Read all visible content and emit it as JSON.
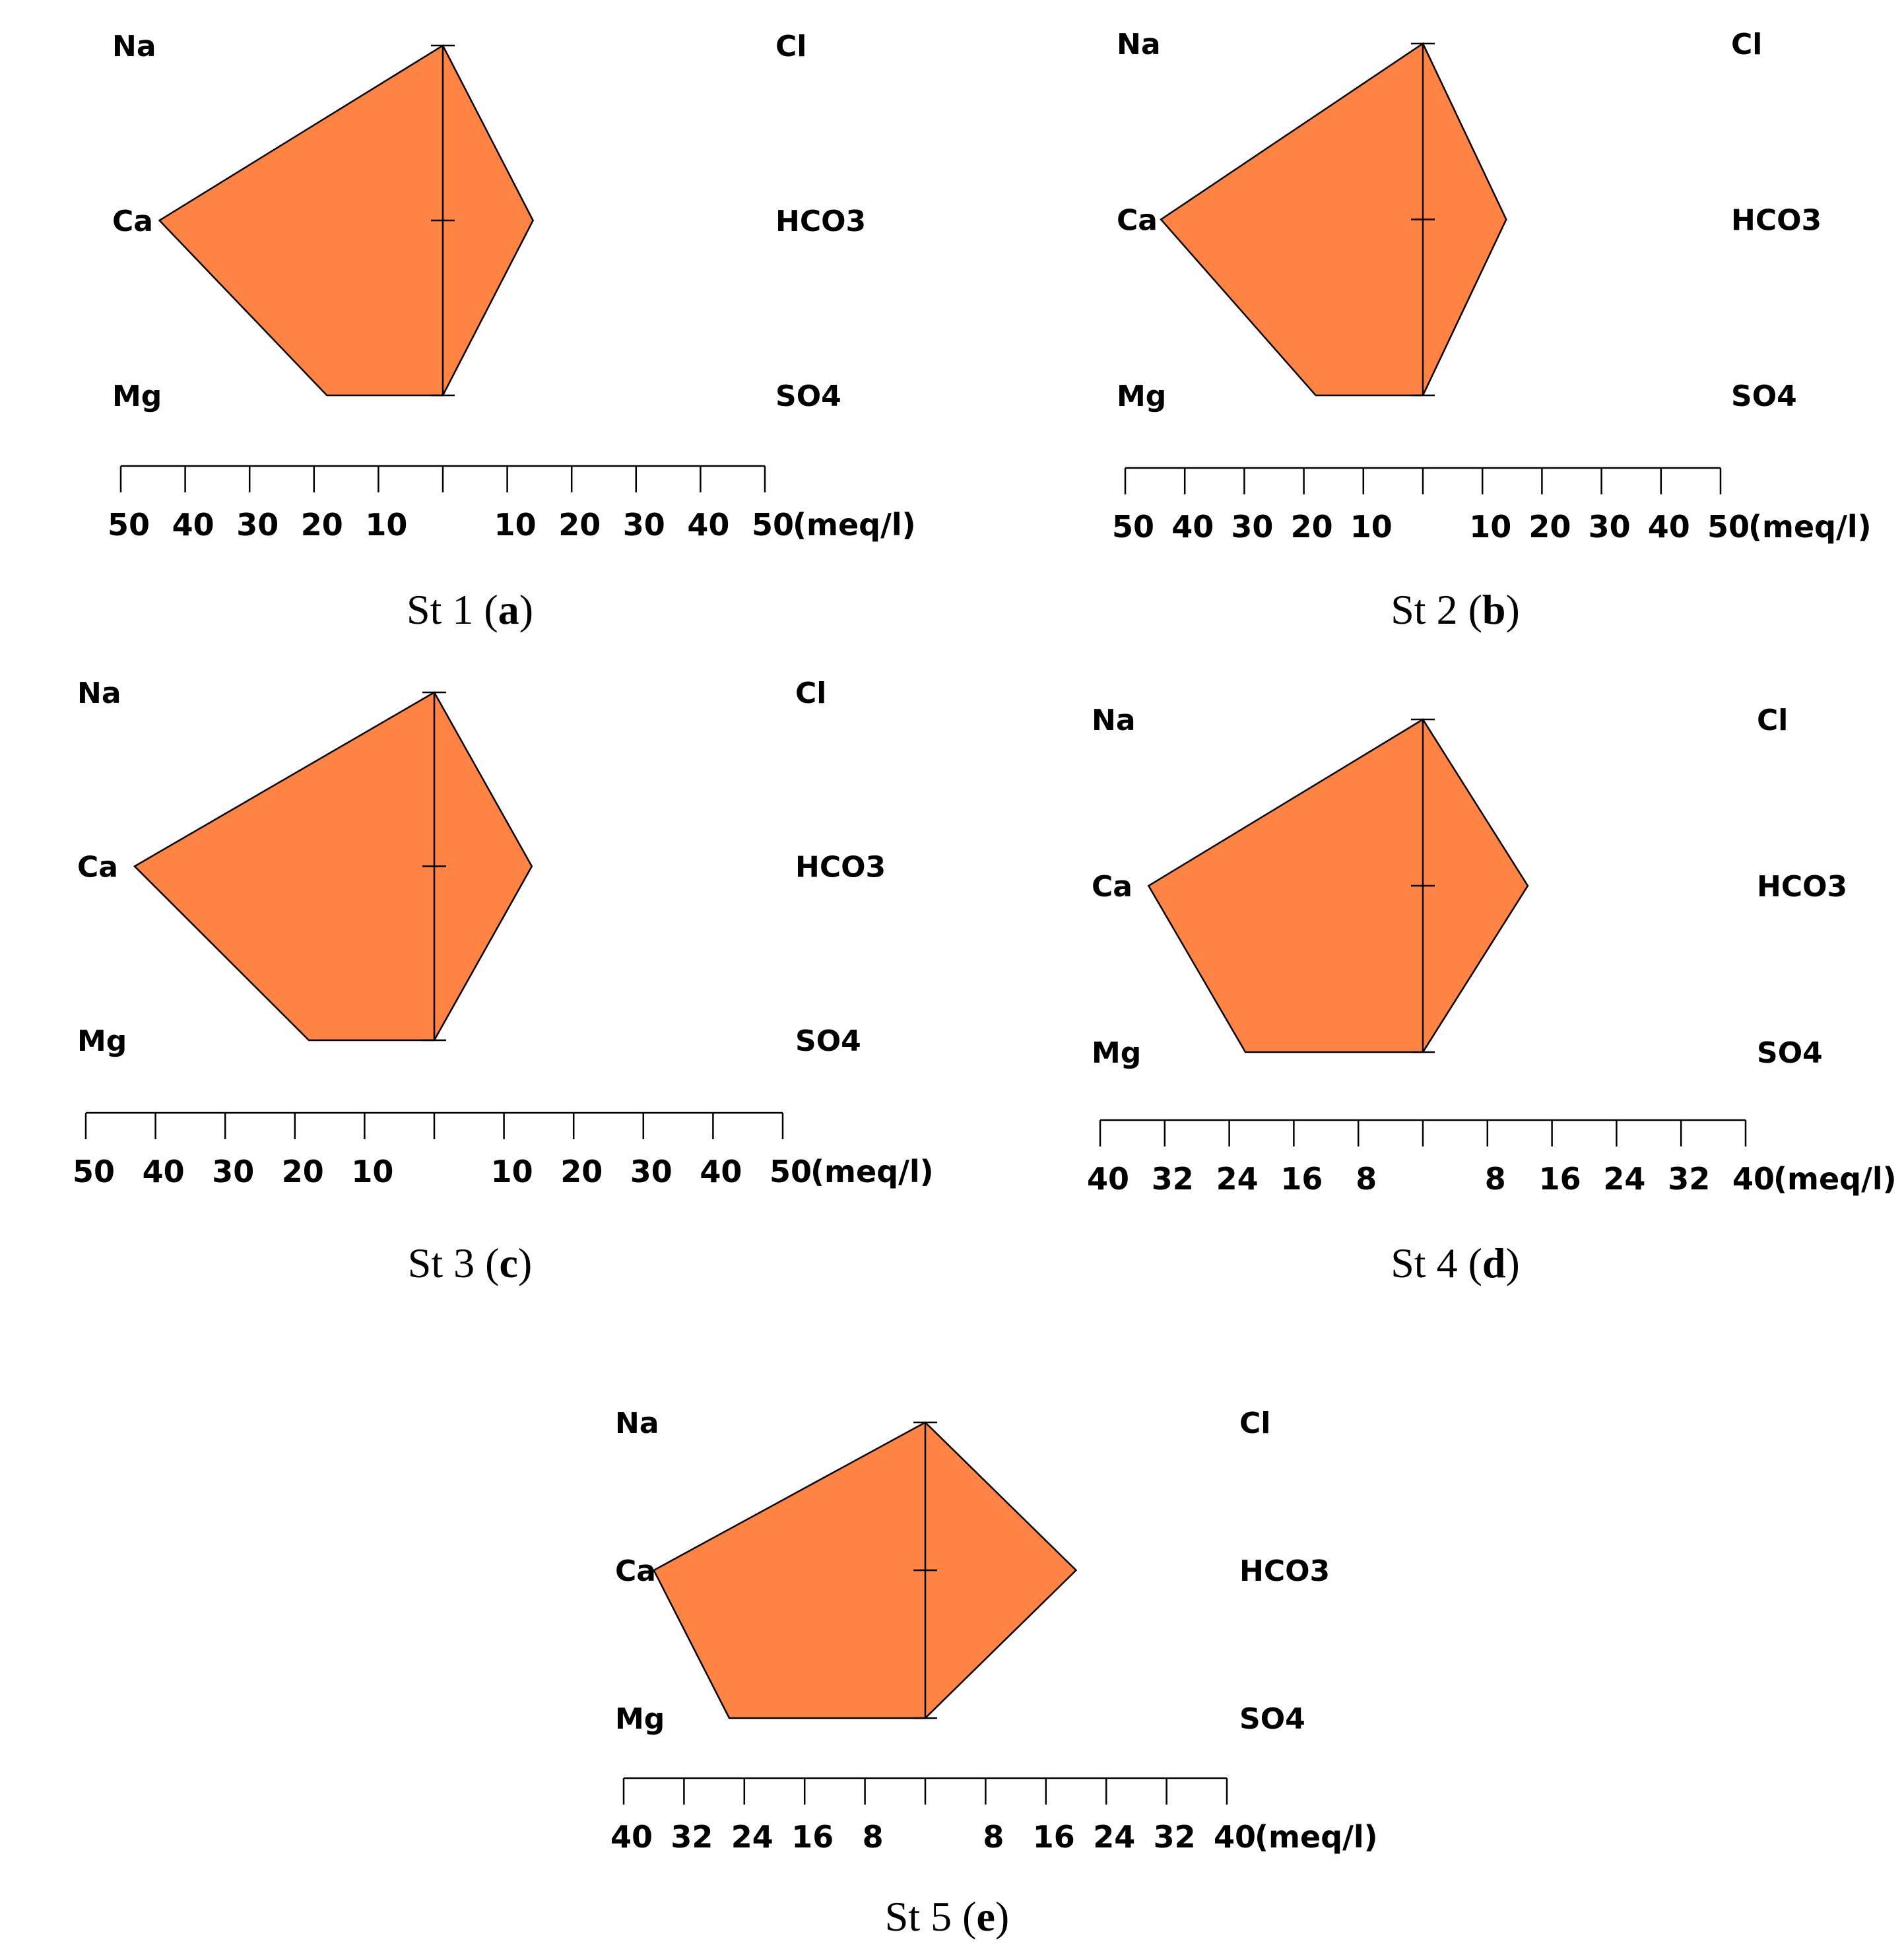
{
  "chart_data": [
    {
      "type": "stiff",
      "caption_prefix": "St 1 (",
      "caption_letter": "a",
      "caption_suffix": ")",
      "cations": {
        "Na": 0,
        "Ca": 44,
        "Mg": 18
      },
      "anions": {
        "Cl": 0,
        "HCO3": 14,
        "SO4": 0
      },
      "cation_labels": [
        "Na",
        "Ca",
        "Mg"
      ],
      "anion_labels": [
        "Cl",
        "HCO3",
        "SO4"
      ],
      "axis_max": 50,
      "tick_labels_left": [
        "50",
        "40",
        "30",
        "20",
        "10"
      ],
      "tick_labels_right": [
        "10",
        "20",
        "30",
        "40",
        "50"
      ],
      "unit": "(meq/l)"
    },
    {
      "type": "stiff",
      "caption_prefix": "St 2 (",
      "caption_letter": "b",
      "caption_suffix": ")",
      "cations": {
        "Na": 0,
        "Ca": 44,
        "Mg": 18
      },
      "anions": {
        "Cl": 0,
        "HCO3": 14,
        "SO4": 0
      },
      "cation_labels": [
        "Na",
        "Ca",
        "Mg"
      ],
      "anion_labels": [
        "Cl",
        "HCO3",
        "SO4"
      ],
      "axis_max": 50,
      "tick_labels_left": [
        "50",
        "40",
        "30",
        "20",
        "10"
      ],
      "tick_labels_right": [
        "10",
        "20",
        "30",
        "40",
        "50"
      ],
      "unit": "(meq/l)"
    },
    {
      "type": "stiff",
      "caption_prefix": "St 3 (",
      "caption_letter": "c",
      "caption_suffix": ")",
      "cations": {
        "Na": 0,
        "Ca": 43,
        "Mg": 18
      },
      "anions": {
        "Cl": 0,
        "HCO3": 14,
        "SO4": 0
      },
      "cation_labels": [
        "Na",
        "Ca",
        "Mg"
      ],
      "anion_labels": [
        "Cl",
        "HCO3",
        "SO4"
      ],
      "axis_max": 50,
      "tick_labels_left": [
        "50",
        "40",
        "30",
        "20",
        "10"
      ],
      "tick_labels_right": [
        "10",
        "20",
        "30",
        "40",
        "50"
      ],
      "unit": "(meq/l)"
    },
    {
      "type": "stiff",
      "caption_prefix": "St 4 (",
      "caption_letter": "d",
      "caption_suffix": ")",
      "cations": {
        "Na": 0,
        "Ca": 34,
        "Mg": 22
      },
      "anions": {
        "Cl": 0,
        "HCO3": 13,
        "SO4": 0
      },
      "cation_labels": [
        "Na",
        "Ca",
        "Mg"
      ],
      "anion_labels": [
        "Cl",
        "HCO3",
        "SO4"
      ],
      "axis_max": 40,
      "tick_labels_left": [
        "40",
        "32",
        "24",
        "16",
        "8"
      ],
      "tick_labels_right": [
        "8",
        "16",
        "24",
        "32",
        "40"
      ],
      "unit": "(meq/l)"
    },
    {
      "type": "stiff",
      "caption_prefix": "St 5 (",
      "caption_letter": "e",
      "caption_suffix": ")",
      "cations": {
        "Na": 0,
        "Ca": 36,
        "Mg": 26
      },
      "anions": {
        "Cl": 0,
        "HCO3": 20,
        "SO4": 0
      },
      "cation_labels": [
        "Na",
        "Ca",
        "Mg"
      ],
      "anion_labels": [
        "Cl",
        "HCO3",
        "SO4"
      ],
      "axis_max": 40,
      "tick_labels_left": [
        "40",
        "32",
        "24",
        "16",
        "8"
      ],
      "tick_labels_right": [
        "8",
        "16",
        "24",
        "32",
        "40"
      ],
      "unit": "(meq/l)"
    }
  ]
}
